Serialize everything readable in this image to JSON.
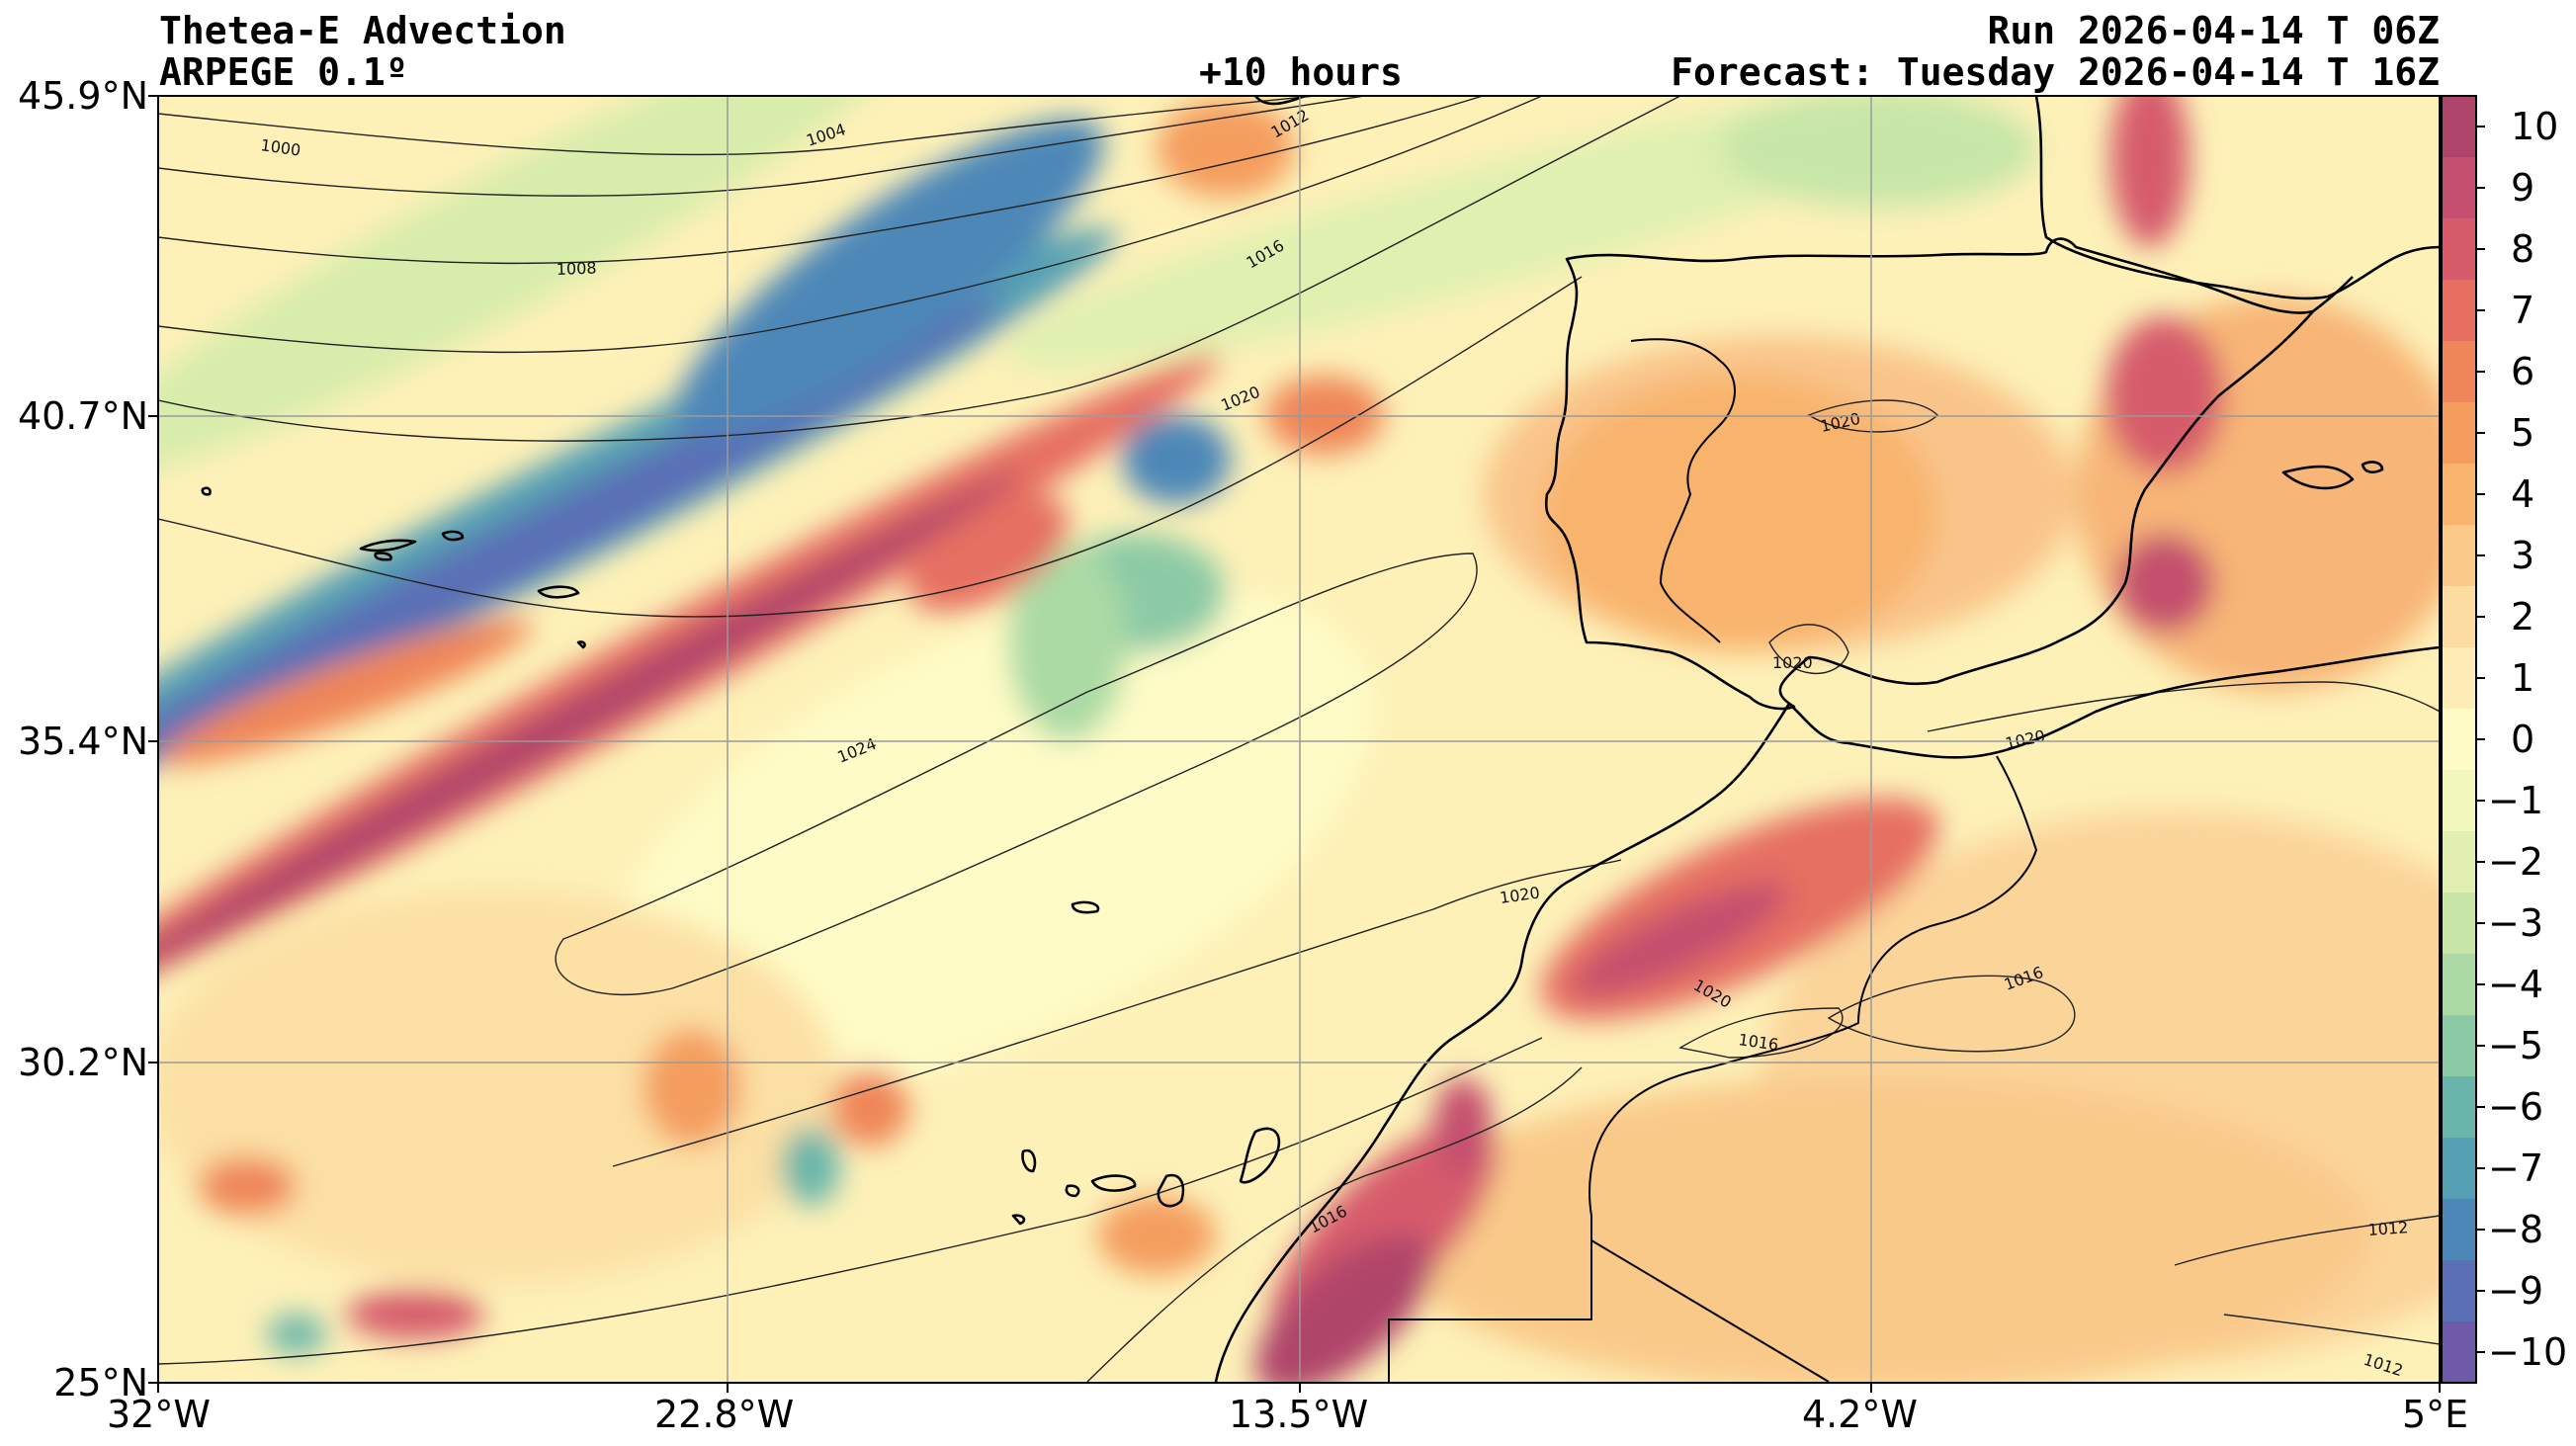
{
  "header": {
    "title": "Thetea-E Advection",
    "model": "ARPEGE 0.1º",
    "lead": "+10 hours",
    "run": "Run 2026-04-14 T 06Z",
    "forecast": "Forecast: Tuesday 2026-04-14 T 16Z"
  },
  "axes": {
    "lat_labels": [
      "45.9°N",
      "40.7°N",
      "35.4°N",
      "30.2°N",
      "25°N"
    ],
    "lon_labels": [
      "32°W",
      "22.8°W",
      "13.5°W",
      "4.2°W",
      "5°E"
    ]
  },
  "colorbar": {
    "ticks": [
      "10",
      "9",
      "8",
      "7",
      "6",
      "5",
      "4",
      "3",
      "2",
      "1",
      "0",
      "−1",
      "−2",
      "−3",
      "−4",
      "−5",
      "−6",
      "−7",
      "−8",
      "−9",
      "−10"
    ],
    "colors": [
      "#b0456b",
      "#c44f6e",
      "#d65c6c",
      "#e66f62",
      "#ef8659",
      "#f49d5f",
      "#f8b46d",
      "#fbc988",
      "#fcdca0",
      "#fdecb6",
      "#fefbc6",
      "#f2f7bb",
      "#e1f0b1",
      "#c8e6a8",
      "#abdaa5",
      "#8ccaa6",
      "#6ab5ab",
      "#56a0b3",
      "#4d87b8",
      "#5a6fb6",
      "#6e5aa8"
    ]
  },
  "isobars": [
    "1000",
    "1004",
    "1008",
    "1012",
    "1016",
    "1020",
    "1024"
  ]
}
